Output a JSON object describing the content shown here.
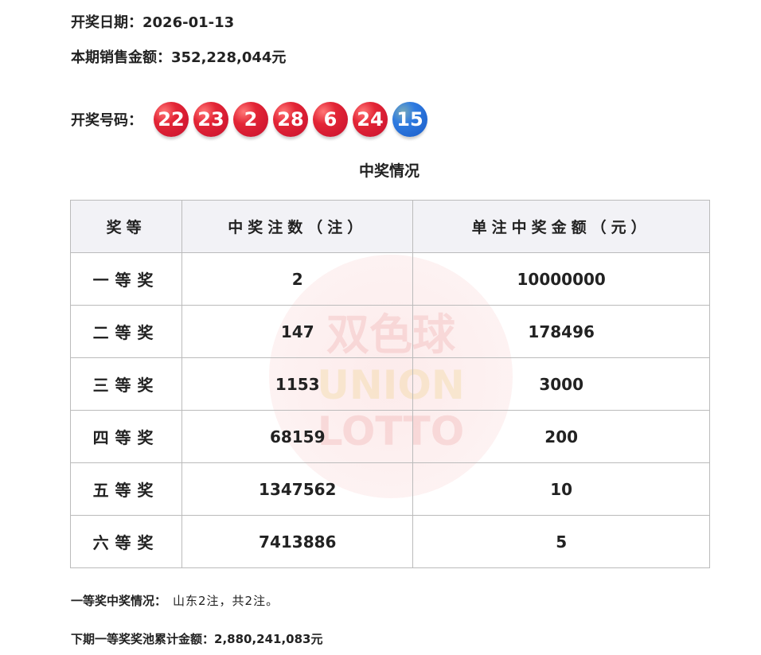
{
  "draw_date": {
    "label": "开奖日期：",
    "value": "2026-01-13"
  },
  "sales": {
    "label": "本期销售金额：",
    "value": "352,228,044元"
  },
  "numbers": {
    "label": "开奖号码：",
    "red": [
      "22",
      "23",
      "2",
      "28",
      "6",
      "24"
    ],
    "blue": [
      "15"
    ],
    "colors": {
      "red": "#e32636",
      "blue": "#2f7be0"
    }
  },
  "watermark": {
    "line1": "双色球",
    "line2": "UNION",
    "line3": "LOTTO"
  },
  "table": {
    "title": "中奖情况",
    "headers": [
      "奖等",
      "中奖注数（注）",
      "单注中奖金额（元）"
    ],
    "rows": [
      [
        "一等奖",
        "2",
        "10000000"
      ],
      [
        "二等奖",
        "147",
        "178496"
      ],
      [
        "三等奖",
        "1153",
        "3000"
      ],
      [
        "四等奖",
        "68159",
        "200"
      ],
      [
        "五等奖",
        "1347562",
        "10"
      ],
      [
        "六等奖",
        "7413886",
        "5"
      ]
    ]
  },
  "first_prize": {
    "label": "一等奖中奖情况：",
    "value": "山东2注，共2注。"
  },
  "pool": {
    "label": "下期一等奖奖池累计金额：",
    "value": "2,880,241,083元"
  }
}
